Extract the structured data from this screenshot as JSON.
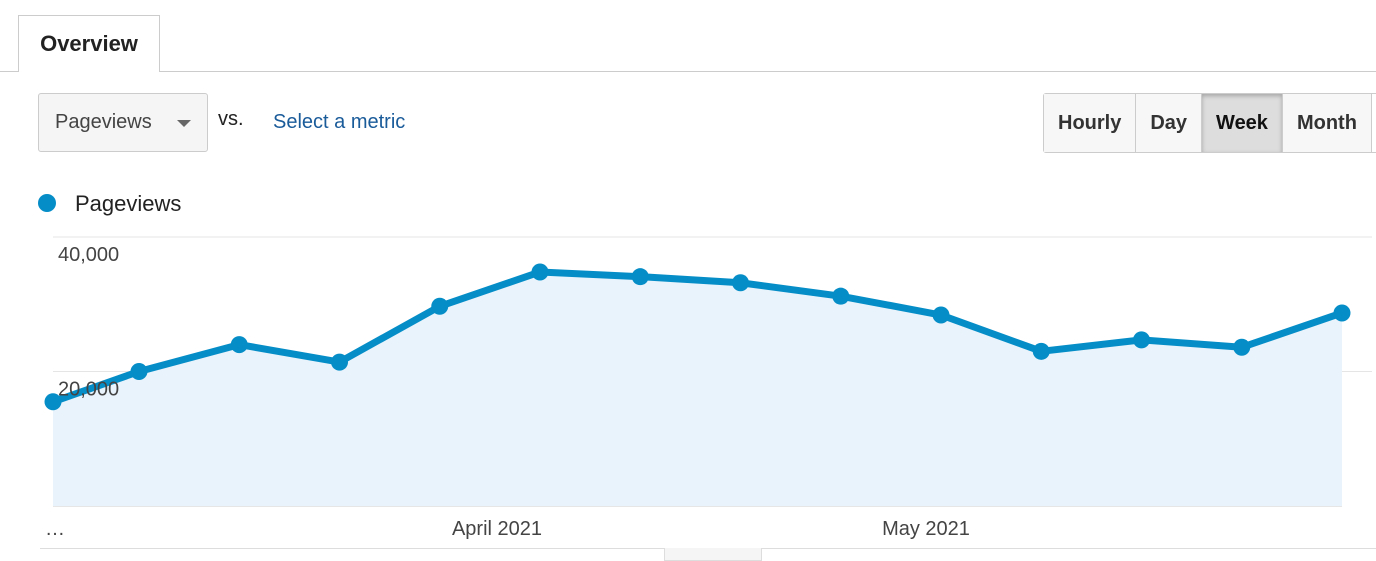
{
  "tab": {
    "title": "Overview"
  },
  "controls": {
    "metric": "Pageviews",
    "vs": "vs.",
    "select_metric": "Select a metric",
    "periods": [
      "Hourly",
      "Day",
      "Week",
      "Month"
    ],
    "active_period": "Week"
  },
  "chart_data": {
    "type": "line",
    "area": true,
    "series": [
      {
        "name": "Pageviews",
        "color": "#058dc7",
        "fill": "#e9f3fb",
        "values": [
          15500,
          20000,
          24000,
          21400,
          29700,
          34800,
          34100,
          33200,
          31200,
          28400,
          23000,
          24700,
          23600,
          28700
        ]
      }
    ],
    "x_labels": [
      "…",
      "April 2021",
      "May 2021"
    ],
    "ylim": [
      0,
      40000
    ],
    "yticks": [
      {
        "value": 20000,
        "label": "20,000"
      },
      {
        "value": 40000,
        "label": "40,000"
      }
    ],
    "grid": true
  }
}
